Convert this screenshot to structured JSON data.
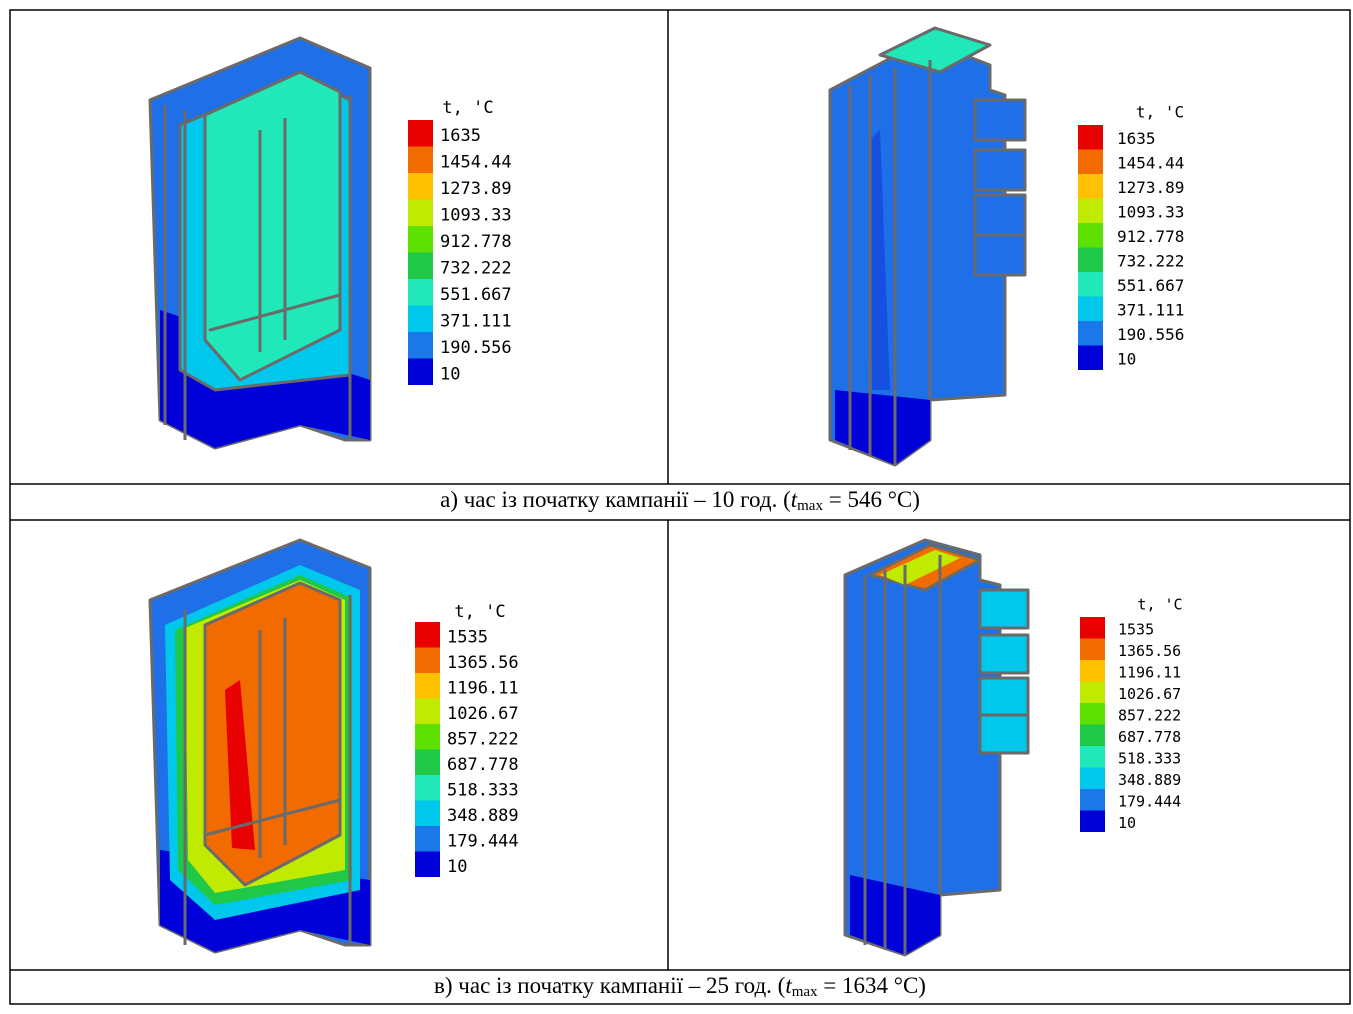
{
  "colors": [
    "#e80000",
    "#f26b00",
    "#ffc000",
    "#c0ea00",
    "#5ee000",
    "#20c848",
    "#20e8b8",
    "#00c8ec",
    "#1a78e8",
    "#0000d8"
  ],
  "panels": [
    {
      "legend": {
        "title": "t, 'C",
        "labels": [
          "1635",
          "1454.44",
          "1273.89",
          "1093.33",
          "912.778",
          "732.222",
          "551.667",
          "371.111",
          "190.556",
          "10"
        ]
      }
    },
    {
      "legend": {
        "title": "t, 'C",
        "labels": [
          "1635",
          "1454.44",
          "1273.89",
          "1093.33",
          "912.778",
          "732.222",
          "551.667",
          "371.111",
          "190.556",
          "10"
        ]
      }
    },
    {
      "legend": {
        "title": "t, 'C",
        "labels": [
          "1535",
          "1365.56",
          "1196.11",
          "1026.67",
          "857.222",
          "687.778",
          "518.333",
          "348.889",
          "179.444",
          "10"
        ]
      }
    },
    {
      "legend": {
        "title": "t, 'C",
        "labels": [
          "1535",
          "1365.56",
          "1196.11",
          "1026.67",
          "857.222",
          "687.778",
          "518.333",
          "348.889",
          "179.444",
          "10"
        ]
      }
    }
  ],
  "captions": [
    {
      "prefix": "а) час із початку кампанії – 10 год. (",
      "symbol": "t",
      "subscript": "max",
      "suffix": " = 546 °C)"
    },
    {
      "prefix": "в) час із початку кампанії – 25 год. (",
      "symbol": "t",
      "subscript": "max",
      "suffix": " = 1634 °C)"
    }
  ]
}
